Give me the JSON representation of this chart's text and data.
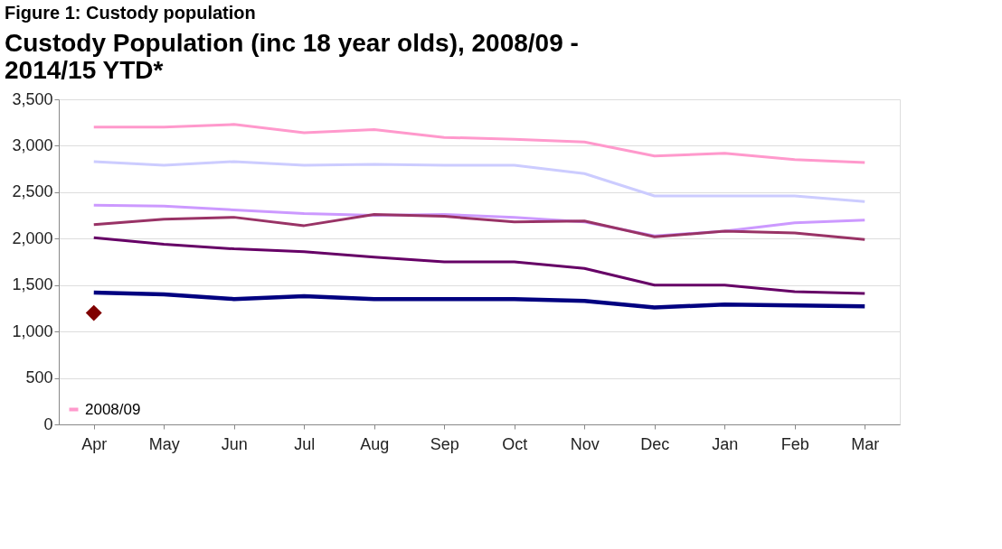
{
  "chart_data": {
    "type": "line",
    "title": [
      "Custody Population (inc 18 year olds), 2008/09 -",
      "2014/15 YTD*"
    ],
    "annotations": [
      "Figure 1: Custody population"
    ],
    "categories": [
      "Apr",
      "May",
      "Jun",
      "Jul",
      "Aug",
      "Sep",
      "Oct",
      "Nov",
      "Dec",
      "Jan",
      "Feb",
      "Mar"
    ],
    "ylim": [
      0,
      3500
    ],
    "yticks": [
      0,
      500,
      {
        "value": 1000,
        "label": "1,000"
      },
      {
        "value": 1500,
        "label": "1,500"
      },
      {
        "value": 2000,
        "label": "2,000"
      },
      {
        "value": 2500,
        "label": "2,500"
      },
      {
        "value": 3000,
        "label": "3,000"
      },
      {
        "value": 3500,
        "label": "3,500"
      }
    ],
    "grid": "y",
    "legend": "bottom left",
    "marker": "none",
    "series": [
      {
        "name": "2008/09",
        "color": "#ff99cc",
        "values": [
          3200,
          3200,
          3230,
          3140,
          3175,
          3090,
          3070,
          3040,
          2890,
          2920,
          2850,
          2820
        ]
      },
      {
        "color": "#ccccff",
        "values": [
          2830,
          2790,
          2830,
          2790,
          2800,
          2790,
          2790,
          2700,
          2460,
          2460,
          2460,
          2400
        ]
      },
      {
        "color": "#cc99ff",
        "values": [
          2360,
          2350,
          2310,
          2270,
          2250,
          2260,
          2230,
          2180,
          2030,
          2080,
          2170,
          2200
        ]
      },
      {
        "color": "#993366",
        "values": [
          2150,
          2210,
          2230,
          2140,
          2260,
          2240,
          2180,
          2190,
          2020,
          2080,
          2060,
          1990
        ]
      },
      {
        "color": "#660066",
        "values": [
          2010,
          1940,
          1890,
          1860,
          1800,
          1750,
          1750,
          1680,
          1500,
          1500,
          1430,
          1410
        ]
      },
      {
        "color": "#000080",
        "values": [
          1420,
          1400,
          1350,
          1380,
          1350,
          1350,
          1350,
          1330,
          1260,
          1290,
          1280,
          1270
        ]
      },
      {
        "type": "scatter",
        "marker": "diamond",
        "color": "#800000",
        "values": [
          1200,
          null,
          null,
          null,
          null,
          null,
          null,
          null,
          null,
          null,
          null,
          null
        ]
      }
    ]
  }
}
